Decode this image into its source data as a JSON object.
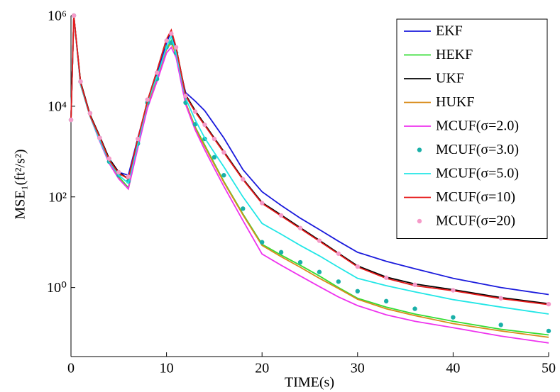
{
  "chart_data": {
    "type": "line",
    "yscale": "log",
    "xlabel": "TIME(s)",
    "ylabel": "MSE₁(ft²/s²)",
    "xlim": [
      0,
      50
    ],
    "xticks": [
      0,
      10,
      20,
      30,
      40,
      50
    ],
    "ylim": [
      0.03,
      1000000
    ],
    "yticks": [
      {
        "value": 1,
        "label": "10⁰"
      },
      {
        "value": 100,
        "label": "10²"
      },
      {
        "value": 10000,
        "label": "10⁴"
      },
      {
        "value": 1000000,
        "label": "10⁶"
      }
    ],
    "legend": "upper right",
    "x": [
      0,
      0.3,
      1,
      2,
      3,
      4,
      5,
      6,
      7,
      8,
      9,
      10,
      10.5,
      11,
      12,
      13,
      14,
      15,
      16,
      18,
      20,
      22,
      24,
      26,
      28,
      30,
      33,
      36,
      40,
      45,
      50
    ],
    "series": [
      {
        "name": "EKF",
        "color": "#1a1adc",
        "marker": "none",
        "values": [
          5000,
          1000000,
          30000,
          6000,
          2000,
          700,
          350,
          300,
          2000,
          12000,
          50000,
          250000,
          450000,
          150000,
          20000,
          13000,
          8000,
          4000,
          2000,
          400,
          130,
          65,
          34,
          19,
          10.5,
          6,
          3.8,
          2.6,
          1.6,
          1.0,
          0.7
        ]
      },
      {
        "name": "HEKF",
        "color": "#33dd33",
        "marker": "none",
        "values": [
          5000,
          1000000,
          30000,
          6000,
          1800,
          600,
          280,
          160,
          1400,
          10000,
          40000,
          180000,
          280000,
          150000,
          12000,
          3500,
          1400,
          550,
          220,
          42,
          9,
          5.2,
          3.1,
          1.8,
          1.0,
          0.58,
          0.37,
          0.26,
          0.18,
          0.12,
          0.09
        ]
      },
      {
        "name": "UKF",
        "color": "#000000",
        "marker": "none",
        "values": [
          5000,
          1000000,
          35000,
          6500,
          2200,
          700,
          350,
          250,
          1800,
          13000,
          60000,
          300000,
          450000,
          200000,
          18000,
          8000,
          4000,
          2000,
          1000,
          250,
          75,
          40,
          21,
          11,
          5.7,
          3,
          1.7,
          1.2,
          0.9,
          0.6,
          0.44
        ]
      },
      {
        "name": "HUKF",
        "color": "#d98c1a",
        "marker": "none",
        "values": [
          5000,
          1000000,
          32000,
          6000,
          1800,
          550,
          260,
          150,
          1300,
          10000,
          40000,
          180000,
          250000,
          140000,
          12000,
          3300,
          1300,
          520,
          210,
          40,
          8.5,
          4.8,
          2.8,
          1.6,
          0.95,
          0.55,
          0.34,
          0.24,
          0.16,
          0.11,
          0.08
        ]
      },
      {
        "name": "MCUF(σ=2.0)",
        "color": "#ee33ee",
        "marker": "none",
        "values": [
          5000,
          1000000,
          30000,
          6000,
          1700,
          550,
          250,
          150,
          1200,
          9000,
          35000,
          150000,
          200000,
          120000,
          11000,
          3000,
          1100,
          430,
          170,
          30,
          5.5,
          3.1,
          1.8,
          1.05,
          0.62,
          0.4,
          0.25,
          0.18,
          0.13,
          0.085,
          0.06
        ]
      },
      {
        "name": "MCUF(σ=3.0)",
        "color": "#1ab0a8",
        "marker": "dot",
        "values": [
          5000,
          1000000,
          35000,
          7000,
          2000,
          600,
          300,
          220,
          1500,
          12000,
          40000,
          200000,
          250000,
          150000,
          12000,
          4000,
          1900,
          750,
          300,
          55,
          10,
          6,
          3.6,
          2.2,
          1.35,
          0.83,
          0.5,
          0.34,
          0.22,
          0.15,
          0.11
        ]
      },
      {
        "name": "MCUF(σ=5.0)",
        "color": "#22e6e6",
        "marker": "none",
        "values": [
          5000,
          1000000,
          30000,
          6000,
          1800,
          600,
          300,
          200,
          1500,
          12000,
          45000,
          200000,
          350000,
          150000,
          15000,
          5000,
          2000,
          950,
          460,
          100,
          26,
          15,
          8.5,
          5,
          2.8,
          1.6,
          1.1,
          0.8,
          0.54,
          0.37,
          0.26
        ]
      },
      {
        "name": "MCUF(σ=10)",
        "color": "#e61a1a",
        "marker": "none",
        "values": [
          5000,
          1000000,
          33000,
          6200,
          2100,
          650,
          330,
          250,
          1900,
          13000,
          60000,
          300000,
          480000,
          200000,
          17000,
          7500,
          3800,
          1900,
          950,
          240,
          72,
          38,
          20,
          10.5,
          5.5,
          2.85,
          1.6,
          1.1,
          0.85,
          0.57,
          0.42
        ]
      },
      {
        "name": "MCUF(σ=20)",
        "color": "#f59ac8",
        "marker": "dot",
        "values": [
          5000,
          1000000,
          35000,
          7000,
          2000,
          700,
          350,
          280,
          1900,
          14000,
          55000,
          280000,
          400000,
          200000,
          17000,
          7600,
          3900,
          1900,
          960,
          245,
          73,
          39,
          20.5,
          10.8,
          5.6,
          2.9,
          1.65,
          1.15,
          0.87,
          0.58,
          0.43
        ]
      }
    ]
  }
}
